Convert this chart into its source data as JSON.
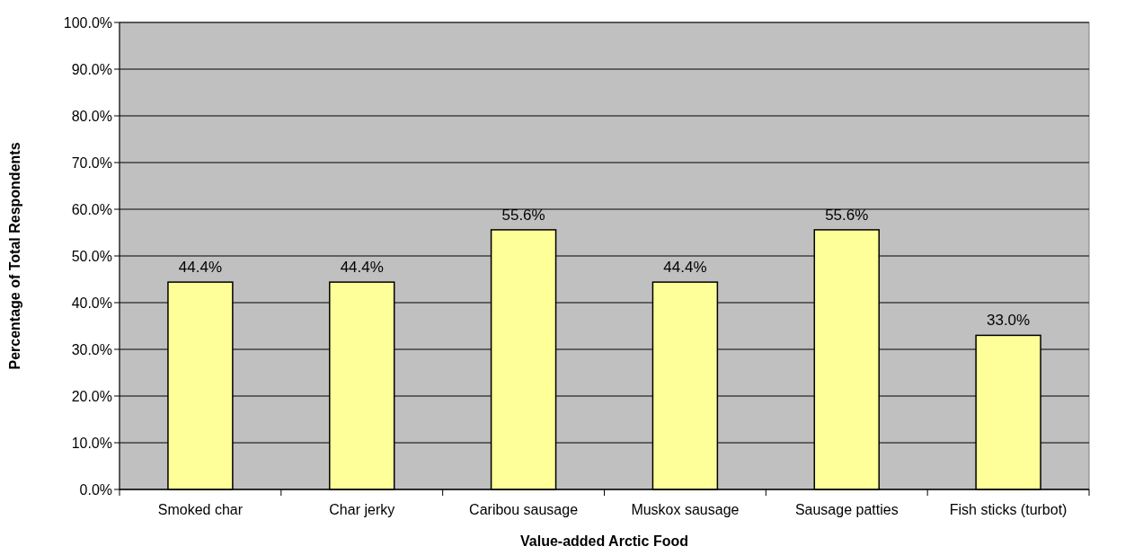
{
  "chart_data": {
    "type": "bar",
    "xlabel": "Value-added Arctic Food",
    "ylabel": "Percentage of Total Respondents",
    "categories": [
      "Smoked char",
      "Char jerky",
      "Caribou sausage",
      "Muskox sausage",
      "Sausage patties",
      "Fish sticks (turbot)"
    ],
    "values": [
      44.4,
      44.4,
      55.6,
      44.4,
      55.6,
      33.0
    ],
    "value_labels": [
      "44.4%",
      "44.4%",
      "55.6%",
      "44.4%",
      "55.6%",
      "33.0%"
    ],
    "color": "#ffff99",
    "ylim": [
      0,
      100
    ],
    "yticks": [
      {
        "value": 0,
        "label": "0.0%"
      },
      {
        "value": 10,
        "label": "10.0%"
      },
      {
        "value": 20,
        "label": "20.0%"
      },
      {
        "value": 30,
        "label": "30.0%"
      },
      {
        "value": 40,
        "label": "40.0%"
      },
      {
        "value": 50,
        "label": "50.0%"
      },
      {
        "value": 60,
        "label": "60.0%"
      },
      {
        "value": 70,
        "label": "70.0%"
      },
      {
        "value": 80,
        "label": "80.0%"
      },
      {
        "value": 90,
        "label": "90.0%"
      },
      {
        "value": 100,
        "label": "100.0%"
      }
    ],
    "grid": "y"
  }
}
